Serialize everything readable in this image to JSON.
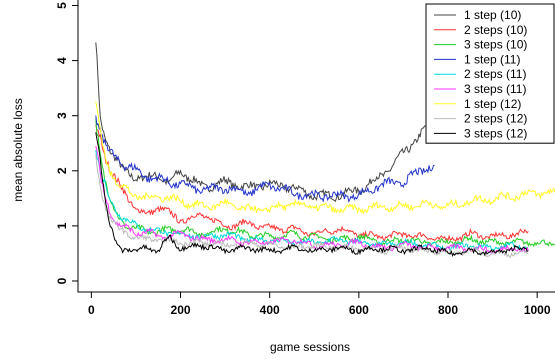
{
  "chart_data": {
    "type": "line",
    "title": "",
    "xlabel": "game sessions",
    "ylabel": "mean absolute loss",
    "xlim": [
      -30,
      1040
    ],
    "ylim": [
      -0.2,
      5.1
    ],
    "xticks": [
      0,
      200,
      400,
      600,
      800,
      1000
    ],
    "yticks": [
      0,
      1,
      2,
      3,
      4,
      5
    ],
    "legend_position": "top-right",
    "grid": false,
    "series": [
      {
        "name": "1 step (10)",
        "color": "#444444",
        "x": [
          10,
          20,
          30,
          40,
          50,
          60,
          70,
          80,
          100,
          125,
          150,
          175,
          200,
          250,
          300,
          350,
          400,
          450,
          500,
          550,
          600,
          650,
          700,
          725,
          750,
          770
        ],
        "y": [
          4.35,
          2.9,
          2.6,
          2.45,
          2.3,
          2.15,
          2.0,
          1.95,
          1.9,
          1.85,
          1.95,
          1.75,
          2.0,
          1.7,
          1.8,
          1.7,
          1.75,
          1.7,
          1.55,
          1.55,
          1.65,
          1.9,
          2.3,
          2.55,
          2.75,
          2.9
        ]
      },
      {
        "name": "2 steps (10)",
        "color": "#ff3333",
        "x": [
          10,
          20,
          30,
          40,
          50,
          60,
          80,
          100,
          125,
          150,
          200,
          250,
          300,
          350,
          400,
          450,
          500,
          550,
          600,
          650,
          700,
          750,
          800,
          850,
          900,
          950,
          980
        ],
        "y": [
          2.8,
          2.6,
          2.3,
          2.1,
          1.9,
          1.75,
          1.55,
          1.3,
          1.2,
          1.35,
          1.1,
          1.2,
          1.0,
          1.05,
          0.95,
          0.95,
          0.85,
          0.95,
          0.85,
          0.8,
          0.85,
          0.8,
          0.75,
          0.85,
          0.8,
          0.85,
          0.9
        ]
      },
      {
        "name": "3 steps (10)",
        "color": "#22cc22",
        "x": [
          10,
          20,
          30,
          40,
          50,
          60,
          80,
          100,
          125,
          150,
          200,
          250,
          300,
          350,
          400,
          450,
          500,
          550,
          600,
          650,
          700,
          750,
          800,
          850,
          900,
          950,
          1000,
          1040
        ],
        "y": [
          2.9,
          2.3,
          1.9,
          1.55,
          1.3,
          1.15,
          1.0,
          0.95,
          0.9,
          0.9,
          0.95,
          0.85,
          0.95,
          0.85,
          0.8,
          0.85,
          0.8,
          0.75,
          0.8,
          0.7,
          0.75,
          0.7,
          0.7,
          0.75,
          0.7,
          0.7,
          0.7,
          0.65
        ]
      },
      {
        "name": "1 step (11)",
        "color": "#2233cc",
        "x": [
          10,
          20,
          30,
          40,
          50,
          60,
          80,
          100,
          125,
          150,
          200,
          250,
          300,
          350,
          400,
          450,
          500,
          550,
          600,
          650,
          700,
          750,
          770
        ],
        "y": [
          3.0,
          2.75,
          2.5,
          2.35,
          2.25,
          2.2,
          2.1,
          2.0,
          1.9,
          1.85,
          1.75,
          1.65,
          1.7,
          1.6,
          1.75,
          1.6,
          1.55,
          1.55,
          1.55,
          1.75,
          1.8,
          2.05,
          2.1
        ]
      },
      {
        "name": "2 steps (11)",
        "color": "#00d8d8",
        "x": [
          10,
          20,
          30,
          40,
          50,
          60,
          80,
          100,
          125,
          150,
          200,
          250,
          300,
          350,
          400,
          450,
          500,
          550,
          600,
          650,
          700,
          750,
          800,
          850,
          900,
          950,
          980
        ],
        "y": [
          2.4,
          2.0,
          1.75,
          1.5,
          1.35,
          1.25,
          1.1,
          1.0,
          0.95,
          0.9,
          0.85,
          0.8,
          0.85,
          0.75,
          0.75,
          0.7,
          0.7,
          0.75,
          0.7,
          0.65,
          0.7,
          0.65,
          0.6,
          0.65,
          0.6,
          0.65,
          0.6
        ]
      },
      {
        "name": "3 steps (11)",
        "color": "#ff33ff",
        "x": [
          10,
          20,
          30,
          40,
          50,
          60,
          80,
          100,
          125,
          150,
          200,
          250,
          300,
          350,
          400,
          450,
          500,
          550,
          600,
          650,
          700,
          750,
          800,
          850,
          900,
          950,
          980
        ],
        "y": [
          2.5,
          1.9,
          1.5,
          1.3,
          1.15,
          1.05,
          0.95,
          0.85,
          0.9,
          0.8,
          0.85,
          0.75,
          0.75,
          0.7,
          0.7,
          0.75,
          0.65,
          0.65,
          0.7,
          0.6,
          0.65,
          0.6,
          0.6,
          0.6,
          0.55,
          0.6,
          0.55
        ]
      },
      {
        "name": "1 step (12)",
        "color": "#ffff22",
        "x": [
          10,
          20,
          30,
          40,
          50,
          60,
          80,
          100,
          125,
          150,
          200,
          250,
          300,
          350,
          400,
          450,
          500,
          550,
          600,
          650,
          700,
          750,
          800,
          850,
          900,
          950,
          1000,
          1040
        ],
        "y": [
          3.2,
          2.7,
          2.3,
          2.05,
          1.9,
          1.75,
          1.65,
          1.55,
          1.5,
          1.55,
          1.45,
          1.35,
          1.4,
          1.3,
          1.3,
          1.4,
          1.35,
          1.3,
          1.3,
          1.35,
          1.35,
          1.4,
          1.35,
          1.45,
          1.5,
          1.55,
          1.6,
          1.6
        ]
      },
      {
        "name": "2 steps (12)",
        "color": "#bbbbbb",
        "x": [
          10,
          20,
          30,
          40,
          50,
          60,
          80,
          100,
          125,
          150,
          200,
          250,
          300,
          350,
          400,
          450,
          500,
          550,
          600,
          650,
          700,
          750,
          800,
          850,
          900,
          950,
          980
        ],
        "y": [
          2.2,
          1.7,
          1.4,
          1.2,
          1.05,
          0.95,
          0.85,
          0.8,
          0.75,
          0.75,
          0.7,
          0.7,
          0.65,
          0.7,
          0.65,
          0.6,
          0.65,
          0.6,
          0.6,
          0.55,
          0.6,
          0.55,
          0.5,
          0.55,
          0.5,
          0.5,
          0.5
        ]
      },
      {
        "name": "3 steps (12)",
        "color": "#000000",
        "x": [
          10,
          20,
          30,
          40,
          50,
          60,
          70,
          80,
          100,
          125,
          150,
          175,
          200,
          250,
          300,
          350,
          400,
          450,
          500,
          550,
          600,
          650,
          700,
          750,
          800,
          850,
          900,
          950,
          980
        ],
        "y": [
          2.7,
          2.2,
          1.6,
          1.1,
          0.8,
          0.6,
          0.55,
          0.6,
          0.55,
          0.6,
          0.55,
          0.8,
          0.6,
          0.65,
          0.55,
          0.6,
          0.55,
          0.6,
          0.55,
          0.6,
          0.55,
          0.6,
          0.55,
          0.6,
          0.5,
          0.55,
          0.5,
          0.6,
          0.55
        ]
      }
    ]
  }
}
